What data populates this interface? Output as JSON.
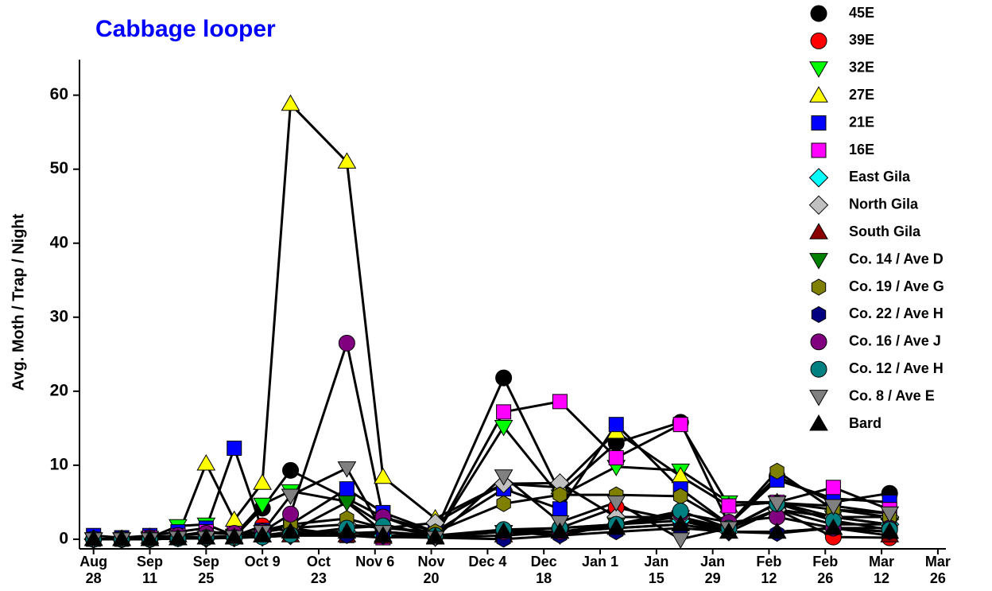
{
  "chart_data": {
    "type": "line",
    "title": "Cabbage looper",
    "y_label": "Avg. Moth / Trap / Night",
    "x": [
      0,
      7,
      14,
      21,
      28,
      35,
      42,
      49,
      63,
      72,
      85,
      102,
      116,
      130,
      146,
      158,
      170,
      184,
      198
    ],
    "xlim": [
      -3.5,
      212
    ],
    "xticks": [
      {
        "value": 0,
        "label": "Aug 28"
      },
      {
        "value": 14,
        "label": "Sep 11"
      },
      {
        "value": 28,
        "label": "Sep 25"
      },
      {
        "value": 42,
        "label": "Oct 9"
      },
      {
        "value": 56,
        "label": "Oct 23"
      },
      {
        "value": 70,
        "label": "Nov 6"
      },
      {
        "value": 84,
        "label": "Nov 20"
      },
      {
        "value": 98,
        "label": "Dec 4"
      },
      {
        "value": 112,
        "label": "Dec 18"
      },
      {
        "value": 126,
        "label": "Jan 1"
      },
      {
        "value": 140,
        "label": "Jan 15"
      },
      {
        "value": 154,
        "label": "Jan 29"
      },
      {
        "value": 168,
        "label": "Feb 12"
      },
      {
        "value": 182,
        "label": "Feb 26"
      },
      {
        "value": 196,
        "label": "Mar 12"
      },
      {
        "value": 210,
        "label": "Mar 26"
      }
    ],
    "ylim": [
      -1.3,
      64.8
    ],
    "yticks": [
      0,
      10,
      20,
      30,
      40,
      50,
      60
    ],
    "line_color": "#000000",
    "series": [
      {
        "name": "45E",
        "color": "#000000",
        "marker": "circle",
        "values": [
          0,
          0,
          0,
          0.3,
          0.2,
          0.3,
          4.2,
          9.3,
          5.5,
          3,
          1,
          21.8,
          6.3,
          13,
          15.8,
          2,
          8.5,
          5,
          6.2
        ]
      },
      {
        "name": "39E",
        "color": "#ff0000",
        "marker": "circle",
        "values": [
          0,
          0,
          0,
          0.2,
          0.3,
          0.4,
          1.8,
          1,
          0.8,
          1,
          0.5,
          1,
          1.5,
          4.3,
          2.5,
          1.5,
          4,
          0.3,
          0.2
        ]
      },
      {
        "name": "32E",
        "color": "#00ff00",
        "marker": "triangle-down",
        "values": [
          0,
          0,
          0.2,
          1.8,
          2,
          0.5,
          4.7,
          6.5,
          5.1,
          2,
          0.5,
          15.2,
          5.8,
          9.8,
          9.3,
          5,
          5,
          3,
          2
        ]
      },
      {
        "name": "27E",
        "color": "#ffff00",
        "marker": "triangle-up",
        "values": [
          0,
          0,
          0.3,
          0.5,
          10.2,
          2.6,
          7.6,
          58.8,
          51,
          8.4,
          2.8,
          7.5,
          7,
          14.5,
          8.5,
          4.5,
          5,
          4,
          3.5
        ]
      },
      {
        "name": "21E",
        "color": "#0000ff",
        "marker": "square",
        "values": [
          0.5,
          0.2,
          0.5,
          1,
          1.5,
          12.3,
          1.2,
          2,
          6.8,
          3.6,
          1,
          6.8,
          4.1,
          15.5,
          6.8,
          2,
          8,
          5.5,
          5
        ]
      },
      {
        "name": "16E",
        "color": "#ff00ff",
        "marker": "square",
        "values": [
          0,
          0,
          0.2,
          0.5,
          1,
          0.8,
          1,
          1.5,
          0.5,
          0.2,
          0.5,
          17.2,
          18.6,
          11,
          15.5,
          4.5,
          5,
          7,
          4
        ]
      },
      {
        "name": "East Gila",
        "color": "#00ffff",
        "marker": "diamond",
        "values": [
          0,
          0,
          0,
          0.2,
          0.1,
          0.2,
          0.3,
          0.5,
          1,
          0.5,
          0.3,
          1,
          1.5,
          2,
          2.5,
          1,
          4,
          3,
          2
        ]
      },
      {
        "name": "North Gila",
        "color": "#c0c0c0",
        "marker": "diamond",
        "values": [
          0,
          0,
          0,
          0.3,
          0.3,
          0.5,
          1,
          1.5,
          2,
          1.5,
          2.2,
          7.5,
          7.6,
          3,
          3,
          1.5,
          4,
          3,
          3
        ]
      },
      {
        "name": "South Gila",
        "color": "#8b0000",
        "marker": "triangle-up",
        "values": [
          0,
          0,
          0,
          0.1,
          0.2,
          0.2,
          0.5,
          0.5,
          0.5,
          0.3,
          0.2,
          0.5,
          1,
          1.5,
          2,
          1,
          1,
          1.5,
          0.5
        ]
      },
      {
        "name": "Co. 14 / Ave D",
        "color": "#008000",
        "marker": "triangle-down",
        "values": [
          0,
          0,
          0,
          0.2,
          0.2,
          0.3,
          0.5,
          1,
          5,
          1,
          0.5,
          1,
          0.5,
          2,
          3,
          1,
          4,
          2,
          2
        ]
      },
      {
        "name": "Co. 19 / Ave G",
        "color": "#808000",
        "marker": "hexagon",
        "values": [
          0,
          0,
          0,
          0.2,
          0.3,
          0.5,
          1,
          2,
          2.8,
          1.5,
          1,
          4.8,
          6,
          6,
          5.8,
          2,
          9.2,
          4,
          3
        ]
      },
      {
        "name": "Co. 22 / Ave H",
        "color": "#000080",
        "marker": "hexagon",
        "values": [
          0,
          0,
          0,
          0.1,
          0.1,
          0.2,
          0.3,
          0.5,
          0.5,
          0.5,
          0.2,
          0,
          0.5,
          1,
          1.5,
          1,
          0.8,
          1.5,
          1
        ]
      },
      {
        "name": "Co. 16 / Ave J",
        "color": "#800080",
        "marker": "circle",
        "values": [
          0,
          0,
          0.2,
          0.5,
          0.8,
          0.8,
          1,
          3.4,
          26.5,
          3,
          0.5,
          1,
          1,
          2,
          3.5,
          2.3,
          3,
          1.5,
          1.5
        ]
      },
      {
        "name": "Co. 12 / Ave H",
        "color": "#008080",
        "marker": "circle",
        "values": [
          0,
          0,
          0,
          0.1,
          0.2,
          0.2,
          0.3,
          0.6,
          1.5,
          1.8,
          0.5,
          1.3,
          1.5,
          2,
          3.8,
          1.5,
          4.8,
          2.5,
          1.3
        ]
      },
      {
        "name": "Co. 8 / Ave E",
        "color": "#808080",
        "marker": "triangle-down",
        "values": [
          0,
          0,
          0,
          0.2,
          0.2,
          0.3,
          1,
          5.9,
          9.6,
          1,
          0.2,
          8.5,
          2.3,
          5,
          0,
          1.5,
          4.9,
          4.5,
          3.5
        ]
      },
      {
        "name": "Bard",
        "color": "#000000",
        "marker": "triangle-up",
        "values": [
          0,
          0,
          0,
          0.1,
          0.2,
          0.3,
          0.5,
          1,
          1,
          0.5,
          0.3,
          1,
          1,
          1.5,
          2,
          1,
          1,
          1.5,
          1
        ]
      }
    ]
  }
}
